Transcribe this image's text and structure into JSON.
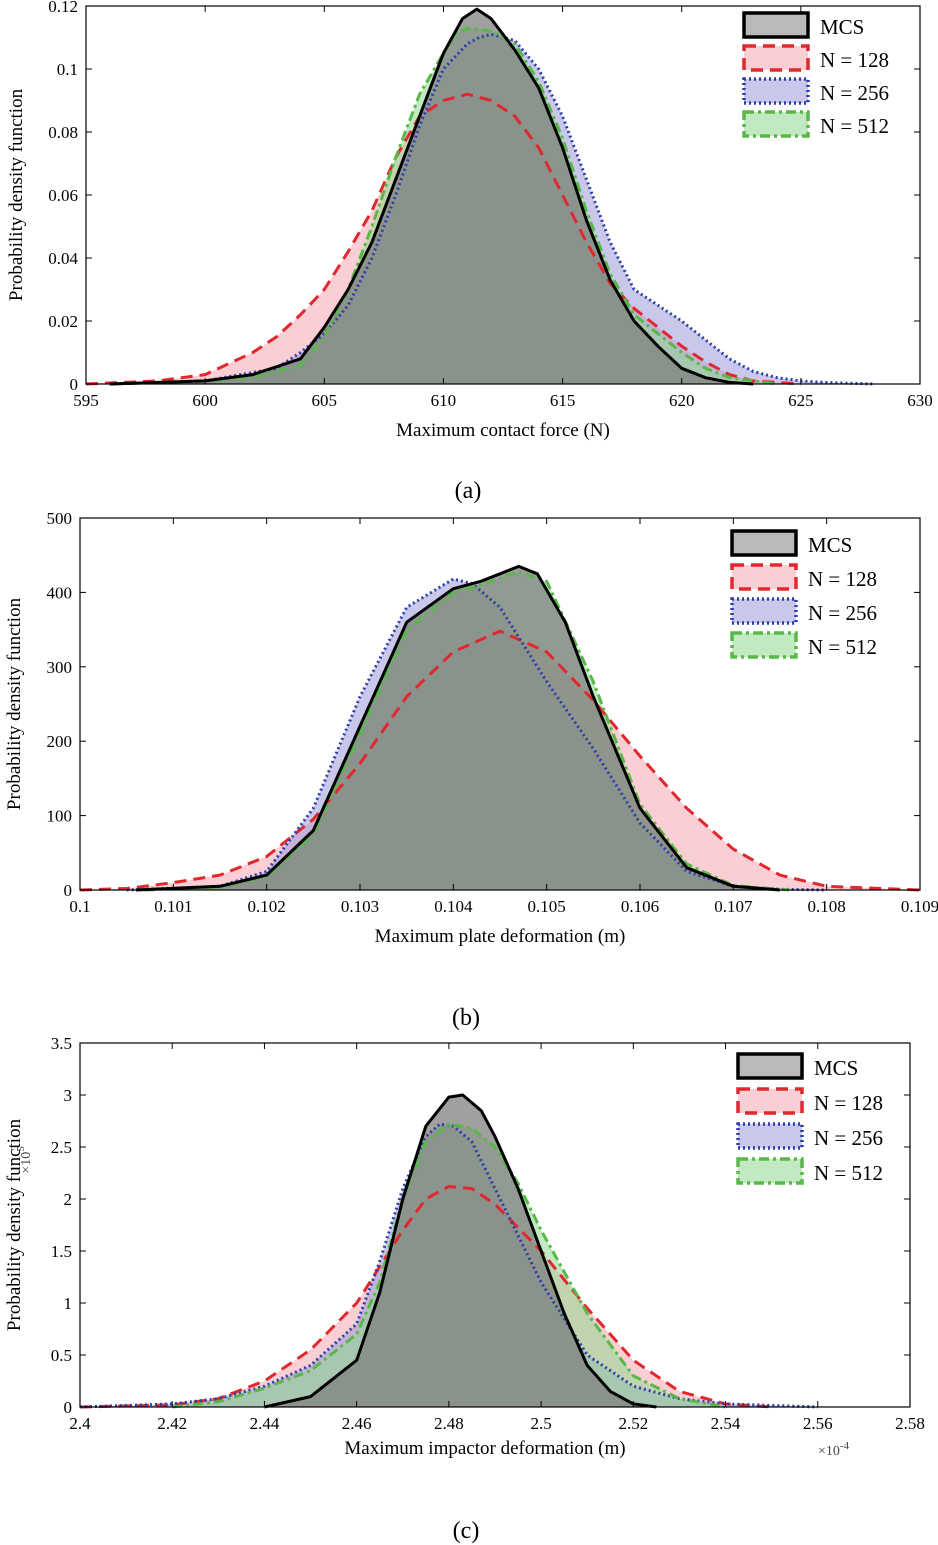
{
  "colors": {
    "mcs_fill": "#808080",
    "mcs_line": "#000000",
    "n128_fill": "#f4a6b0",
    "n128_line": "#e0282e",
    "n256_fill": "#9d9ad8",
    "n256_line": "#2c3ea8",
    "n512_fill": "#8fd98f",
    "n512_line": "#58b848"
  },
  "chart_data": [
    {
      "type": "area",
      "id": "a",
      "caption": "(a)",
      "xlabel": "Maximum contact force (N)",
      "ylabel": "Probability density function",
      "xlim": [
        595,
        630
      ],
      "ylim": [
        0,
        0.12
      ],
      "xticks": [
        595,
        600,
        605,
        610,
        615,
        620,
        625,
        630
      ],
      "xtick_labels": [
        "595",
        "600",
        "605",
        "610",
        "615",
        "620",
        "625",
        "630"
      ],
      "yticks": [
        0,
        0.02,
        0.04,
        0.06,
        0.08,
        0.1,
        0.12
      ],
      "ytick_labels": [
        "0",
        "0.02",
        "0.04",
        "0.06",
        "0.08",
        "0.1",
        "0.12"
      ],
      "legend": {
        "position": "top-right",
        "entries": [
          "MCS",
          "N = 128",
          "N = 256",
          "N = 512"
        ]
      },
      "series": [
        {
          "name": "MCS",
          "x": [
            596,
            600,
            602,
            604,
            605,
            606,
            607,
            608,
            609,
            610,
            610.8,
            611.4,
            612,
            613,
            614,
            615,
            616,
            617,
            618,
            619,
            620,
            621,
            622,
            623
          ],
          "y": [
            0,
            0.001,
            0.003,
            0.008,
            0.018,
            0.03,
            0.045,
            0.065,
            0.085,
            0.105,
            0.116,
            0.119,
            0.116,
            0.106,
            0.094,
            0.075,
            0.052,
            0.033,
            0.02,
            0.012,
            0.005,
            0.002,
            0.0005,
            0
          ]
        },
        {
          "name": "N = 128",
          "x": [
            595,
            598,
            600,
            602,
            603,
            604,
            605,
            606,
            607,
            608,
            609,
            610,
            611,
            612,
            613,
            614,
            615,
            616,
            617,
            618,
            619,
            620,
            621,
            622,
            623,
            625
          ],
          "y": [
            0,
            0.001,
            0.003,
            0.01,
            0.015,
            0.022,
            0.03,
            0.042,
            0.055,
            0.072,
            0.085,
            0.09,
            0.092,
            0.09,
            0.085,
            0.075,
            0.06,
            0.045,
            0.032,
            0.024,
            0.018,
            0.012,
            0.007,
            0.003,
            0.001,
            0
          ]
        },
        {
          "name": "N = 256",
          "x": [
            596,
            600,
            603,
            604,
            605,
            606,
            607,
            608,
            609,
            610,
            611,
            611.5,
            612,
            613,
            614,
            615,
            616,
            617,
            618,
            619,
            620,
            621,
            622,
            623,
            624,
            625,
            626,
            628
          ],
          "y": [
            0,
            0.001,
            0.005,
            0.01,
            0.016,
            0.025,
            0.04,
            0.06,
            0.082,
            0.1,
            0.108,
            0.11,
            0.111,
            0.109,
            0.1,
            0.085,
            0.065,
            0.045,
            0.03,
            0.025,
            0.02,
            0.014,
            0.008,
            0.004,
            0.002,
            0.001,
            0.0005,
            0
          ]
        },
        {
          "name": "N = 512",
          "x": [
            596,
            600,
            602,
            604,
            605,
            606,
            607,
            608,
            609,
            610,
            610.5,
            611,
            612,
            613,
            614,
            615,
            616,
            617,
            618,
            619,
            620,
            621,
            622,
            624
          ],
          "y": [
            0,
            0.001,
            0.002,
            0.006,
            0.015,
            0.03,
            0.05,
            0.072,
            0.092,
            0.105,
            0.111,
            0.113,
            0.112,
            0.108,
            0.096,
            0.078,
            0.055,
            0.035,
            0.022,
            0.016,
            0.01,
            0.005,
            0.002,
            0
          ]
        }
      ]
    },
    {
      "type": "area",
      "id": "b",
      "caption": "(b)",
      "xlabel": "Maximum plate deformation (m)",
      "ylabel": "Probability density function",
      "xlim": [
        0.1,
        0.109
      ],
      "ylim": [
        0,
        500
      ],
      "xticks": [
        0.1,
        0.101,
        0.102,
        0.103,
        0.104,
        0.105,
        0.106,
        0.107,
        0.108,
        0.109
      ],
      "xtick_labels": [
        "0.1",
        "0.101",
        "0.102",
        "0.103",
        "0.104",
        "0.105",
        "0.106",
        "0.107",
        "0.108",
        "0.109"
      ],
      "yticks": [
        0,
        100,
        200,
        300,
        400,
        500
      ],
      "ytick_labels": [
        "0",
        "100",
        "200",
        "300",
        "400",
        "500"
      ],
      "legend": {
        "position": "top-right",
        "entries": [
          "MCS",
          "N = 128",
          "N = 256",
          "N = 512"
        ]
      },
      "series": [
        {
          "name": "MCS",
          "x": [
            0.1006,
            0.1015,
            0.102,
            0.1025,
            0.103,
            0.1035,
            0.104,
            0.1043,
            0.1045,
            0.1047,
            0.1049,
            0.1052,
            0.1055,
            0.106,
            0.1065,
            0.107,
            0.1075
          ],
          "y": [
            0,
            5,
            20,
            80,
            220,
            360,
            405,
            415,
            425,
            435,
            425,
            360,
            260,
            110,
            30,
            5,
            0
          ]
        },
        {
          "name": "N = 128",
          "x": [
            0.1,
            0.1005,
            0.101,
            0.1015,
            0.102,
            0.1025,
            0.103,
            0.1035,
            0.104,
            0.1045,
            0.105,
            0.1055,
            0.106,
            0.1065,
            0.107,
            0.1075,
            0.108,
            0.109
          ],
          "y": [
            0,
            2,
            10,
            20,
            45,
            95,
            170,
            260,
            320,
            348,
            320,
            255,
            180,
            110,
            55,
            20,
            5,
            0
          ]
        },
        {
          "name": "N = 256",
          "x": [
            0.1005,
            0.1015,
            0.102,
            0.1025,
            0.103,
            0.1035,
            0.104,
            0.1042,
            0.1045,
            0.105,
            0.1055,
            0.106,
            0.1065,
            0.107,
            0.1075,
            0.108
          ],
          "y": [
            0,
            5,
            25,
            110,
            260,
            380,
            418,
            412,
            380,
            280,
            190,
            90,
            25,
            5,
            1,
            0
          ]
        },
        {
          "name": "N = 512",
          "x": [
            0.1007,
            0.1015,
            0.102,
            0.1025,
            0.103,
            0.1035,
            0.104,
            0.1043,
            0.1047,
            0.105,
            0.1055,
            0.106,
            0.1065,
            0.107,
            0.1076
          ],
          "y": [
            0,
            4,
            18,
            75,
            210,
            350,
            400,
            410,
            428,
            415,
            280,
            115,
            35,
            6,
            0
          ]
        }
      ]
    },
    {
      "type": "area",
      "id": "c",
      "caption": "(c)",
      "xlabel": "Maximum impactor deformation (m)",
      "ylabel": "Probability density function",
      "y_multiplier": "×10",
      "y_multiplier_exp": "5",
      "x_multiplier": "×10",
      "x_multiplier_exp": "-4",
      "xlim": [
        2.4,
        2.58
      ],
      "ylim": [
        0,
        3.5
      ],
      "xticks": [
        2.4,
        2.42,
        2.44,
        2.46,
        2.48,
        2.5,
        2.52,
        2.54,
        2.56,
        2.58
      ],
      "xtick_labels": [
        "2.4",
        "2.42",
        "2.44",
        "2.46",
        "2.48",
        "2.5",
        "2.52",
        "2.54",
        "2.56",
        "2.58"
      ],
      "yticks": [
        0,
        0.5,
        1,
        1.5,
        2,
        2.5,
        3,
        3.5
      ],
      "ytick_labels": [
        "0",
        "0.5",
        "1",
        "1.5",
        "2",
        "2.5",
        "3",
        "3.5"
      ],
      "legend": {
        "position": "top-right",
        "entries": [
          "MCS",
          "N = 128",
          "N = 256",
          "N = 512"
        ]
      },
      "series": [
        {
          "name": "MCS",
          "x": [
            2.44,
            2.45,
            2.46,
            2.465,
            2.47,
            2.475,
            2.48,
            2.483,
            2.487,
            2.49,
            2.495,
            2.5,
            2.505,
            2.51,
            2.515,
            2.52,
            2.525
          ],
          "y": [
            0,
            0.1,
            0.45,
            1.1,
            2.0,
            2.7,
            2.98,
            3.0,
            2.85,
            2.6,
            2.1,
            1.5,
            0.9,
            0.4,
            0.15,
            0.03,
            0
          ]
        },
        {
          "name": "N = 128",
          "x": [
            2.4,
            2.42,
            2.43,
            2.44,
            2.45,
            2.46,
            2.47,
            2.475,
            2.48,
            2.485,
            2.49,
            2.5,
            2.51,
            2.52,
            2.53,
            2.54,
            2.55
          ],
          "y": [
            0,
            0.02,
            0.08,
            0.25,
            0.55,
            1.0,
            1.7,
            2.0,
            2.12,
            2.1,
            1.95,
            1.5,
            0.95,
            0.45,
            0.15,
            0.03,
            0
          ]
        },
        {
          "name": "N = 256",
          "x": [
            2.4,
            2.42,
            2.43,
            2.44,
            2.45,
            2.46,
            2.465,
            2.47,
            2.475,
            2.478,
            2.481,
            2.485,
            2.49,
            2.5,
            2.51,
            2.52,
            2.53,
            2.54,
            2.56
          ],
          "y": [
            0,
            0.03,
            0.08,
            0.2,
            0.4,
            0.8,
            1.4,
            2.1,
            2.6,
            2.72,
            2.7,
            2.55,
            2.1,
            1.2,
            0.5,
            0.2,
            0.08,
            0.03,
            0
          ]
        },
        {
          "name": "N = 512",
          "x": [
            2.42,
            2.43,
            2.44,
            2.45,
            2.46,
            2.465,
            2.47,
            2.475,
            2.48,
            2.485,
            2.49,
            2.495,
            2.5,
            2.51,
            2.52,
            2.53,
            2.54
          ],
          "y": [
            0,
            0.05,
            0.18,
            0.35,
            0.7,
            1.2,
            2.0,
            2.55,
            2.72,
            2.68,
            2.5,
            2.15,
            1.7,
            0.9,
            0.3,
            0.08,
            0
          ]
        }
      ]
    }
  ]
}
